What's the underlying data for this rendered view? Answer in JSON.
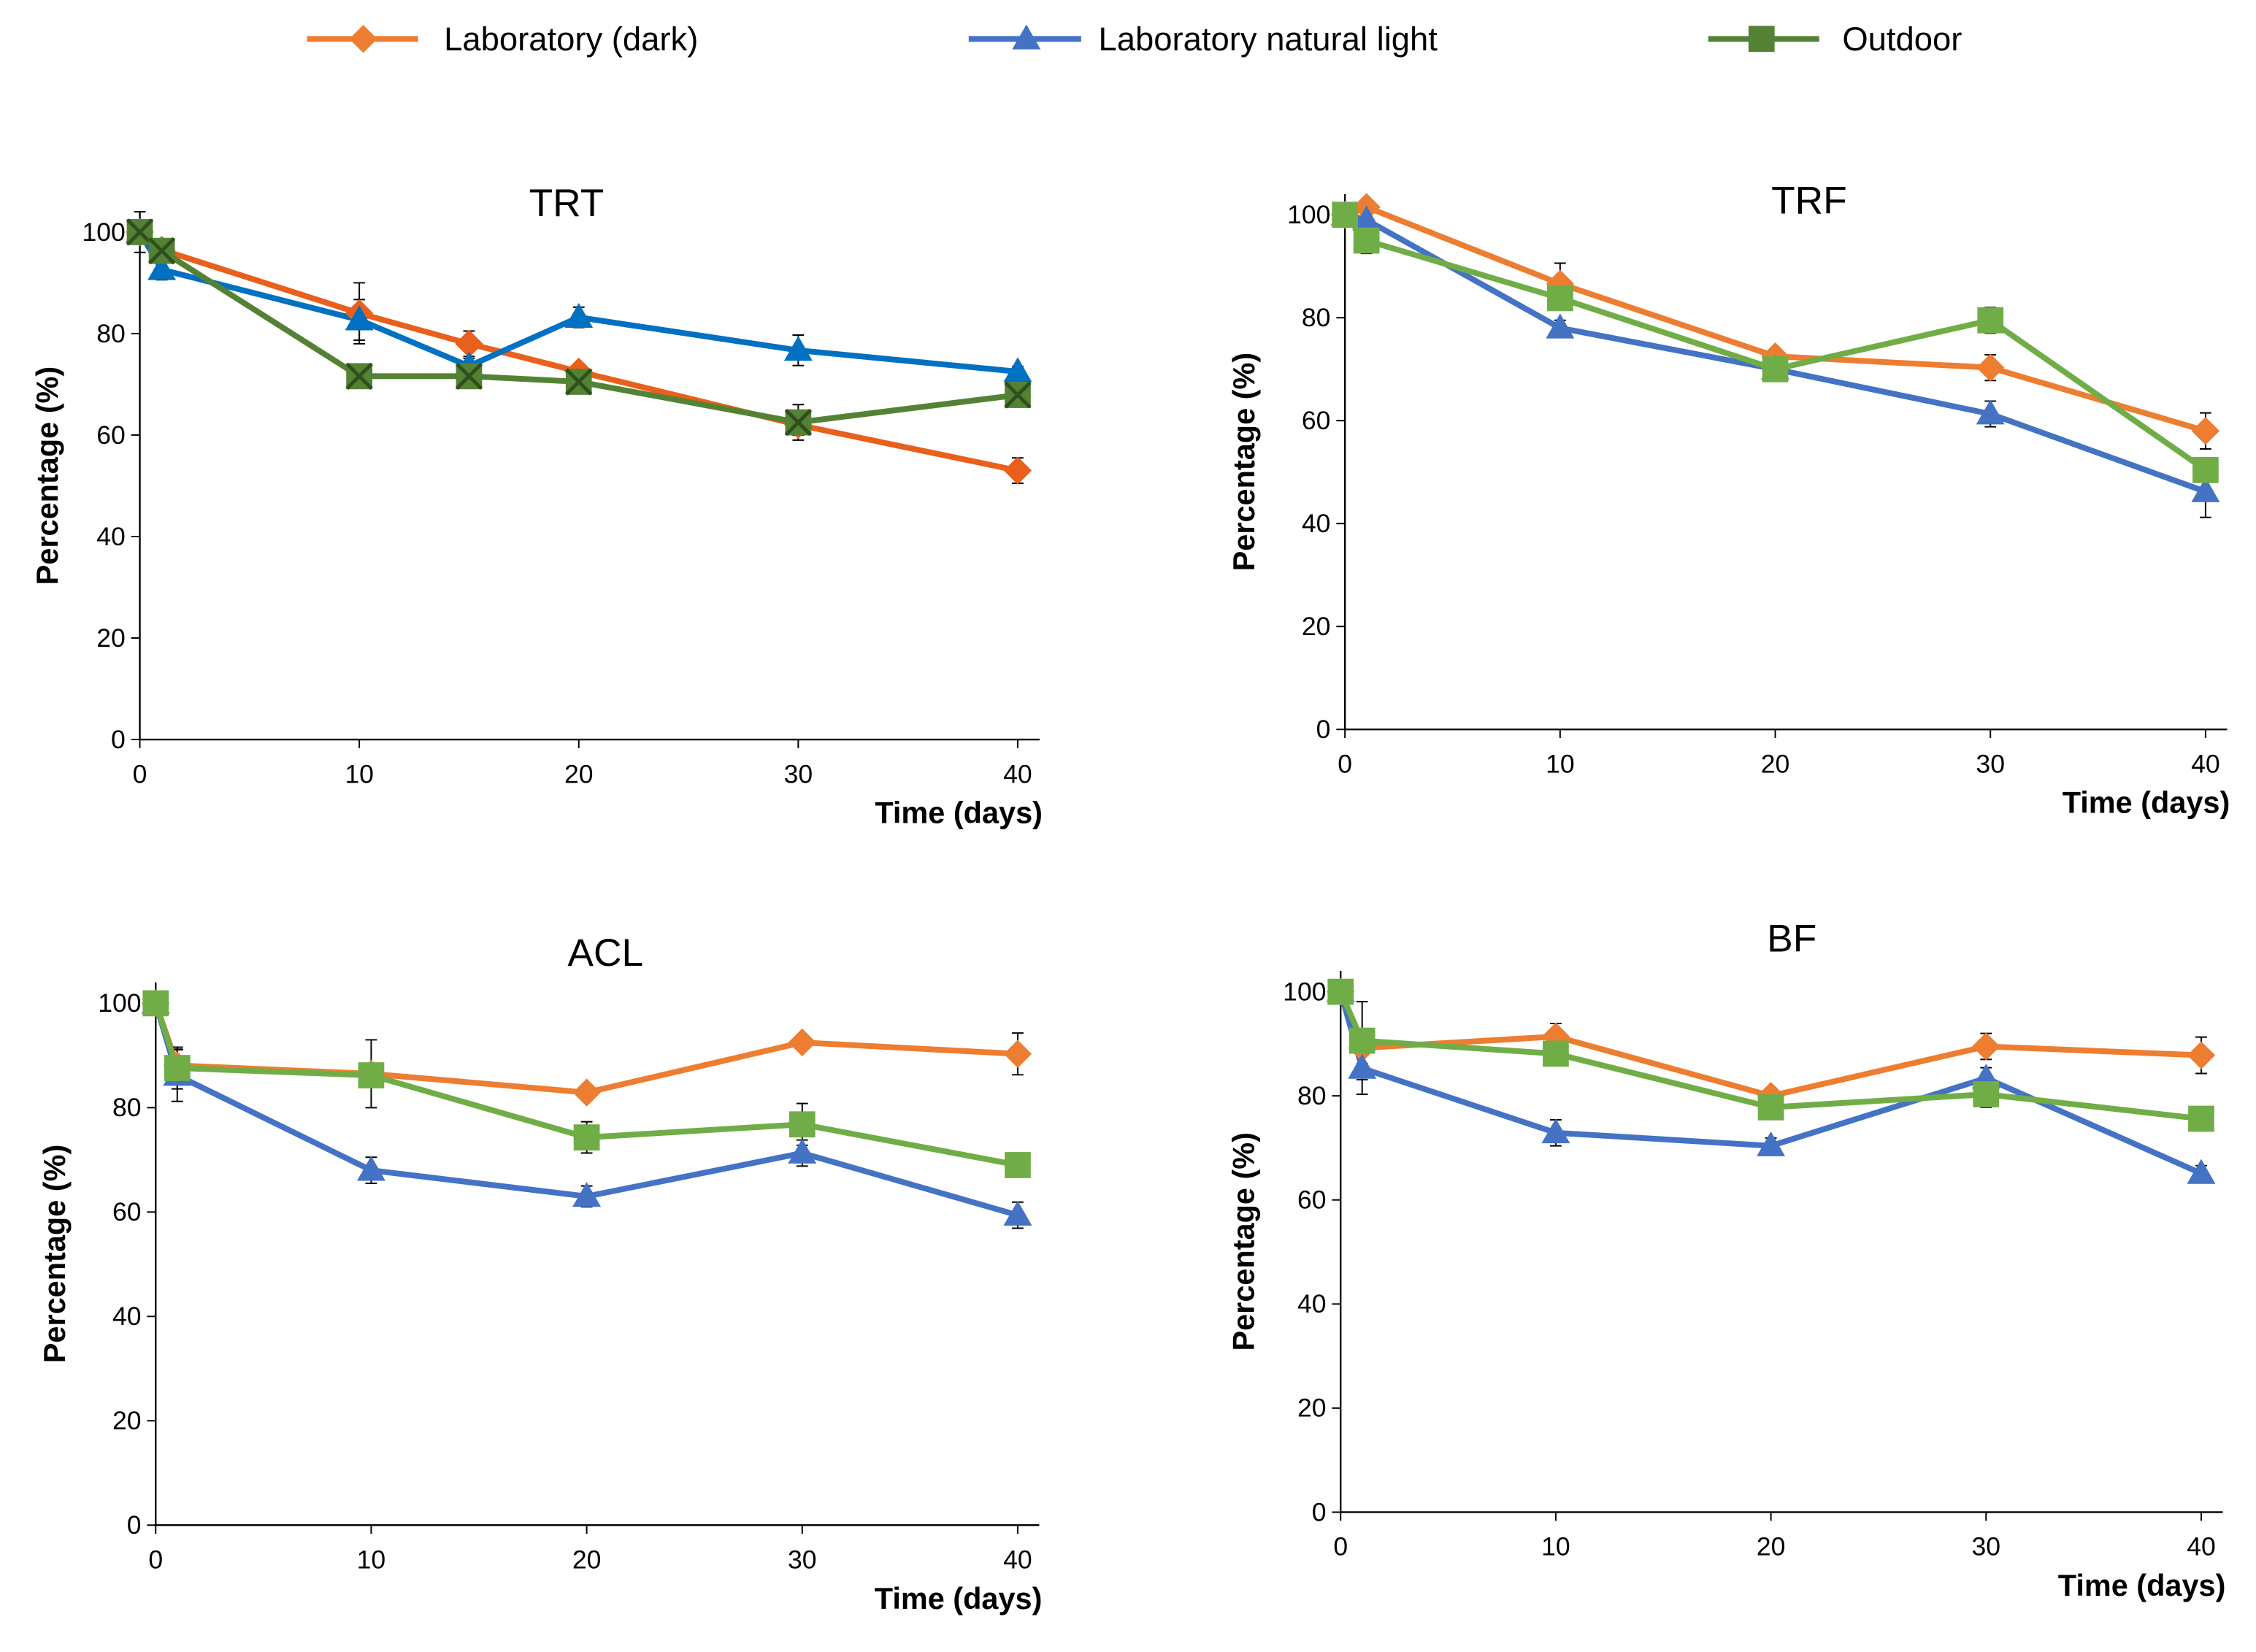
{
  "legend": [
    {
      "name": "Laboratory (dark)",
      "color": "#ed7d31",
      "marker": "diamond"
    },
    {
      "name": "Laboratory natural light",
      "color": "#4472c4",
      "marker": "triangle"
    },
    {
      "name": "Outdoor",
      "color": "#548235",
      "marker": "square"
    }
  ],
  "chart_data": [
    {
      "type": "line",
      "title": "TRT",
      "x_label": "Time (days)",
      "y_label": "Percentage (%)",
      "x": [
        0,
        1,
        10,
        15,
        20,
        30,
        40
      ],
      "series": [
        {
          "color": "#e8601c",
          "marker": "diamond",
          "values": [
            100,
            96.5,
            84,
            78,
            72.5,
            62,
            53
          ],
          "errors": [
            2,
            1.5,
            6,
            2.5,
            1.5,
            2,
            2.5
          ]
        },
        {
          "color": "#0070c0",
          "marker": "triangle",
          "values": [
            100,
            92.6,
            82.7,
            73.6,
            83.2,
            76.7,
            72.5
          ],
          "errors": [
            1.5,
            2,
            4,
            1.5,
            2,
            3,
            1
          ]
        },
        {
          "color": "#548235",
          "marker": "square-x",
          "values": [
            100,
            96.3,
            71.6,
            71.6,
            70.5,
            62.5,
            67.9
          ],
          "errors": [
            4,
            2,
            1.5,
            1.5,
            1.5,
            3.5,
            2
          ]
        }
      ],
      "xlim": [
        0,
        41
      ],
      "ylim": [
        0,
        104
      ],
      "xticks": [
        0,
        10,
        20,
        30,
        40
      ],
      "yticks": [
        0,
        20,
        40,
        60,
        80,
        100
      ]
    },
    {
      "type": "line",
      "title": "TRF",
      "x_label": "Time (days)",
      "y_label": "Percentage (%)",
      "x": [
        0,
        1,
        10,
        20,
        30,
        40
      ],
      "series": [
        {
          "color": "#ed7d31",
          "marker": "diamond",
          "values": [
            100,
            101.5,
            86.6,
            72.5,
            70.3,
            58
          ],
          "errors": [
            1,
            1,
            4,
            1.5,
            2.5,
            3.5
          ]
        },
        {
          "color": "#4472c4",
          "marker": "triangle",
          "values": [
            100,
            99,
            78,
            70,
            61.3,
            46.2
          ],
          "errors": [
            1,
            1.5,
            1.5,
            1,
            2.5,
            5
          ]
        },
        {
          "color": "#70ad47",
          "marker": "square",
          "values": [
            100,
            95,
            83.8,
            70,
            79.5,
            50.4
          ],
          "errors": [
            1,
            2.5,
            2,
            1.5,
            2.5,
            2
          ]
        }
      ],
      "xlim": [
        0,
        41
      ],
      "ylim": [
        0,
        104
      ],
      "xticks": [
        0,
        10,
        20,
        30,
        40
      ],
      "yticks": [
        0,
        20,
        40,
        60,
        80,
        100
      ]
    },
    {
      "type": "line",
      "title": "ACL",
      "x_label": "Time (days)",
      "y_label": "Percentage (%)",
      "x": [
        0,
        1,
        10,
        20,
        30,
        40
      ],
      "series": [
        {
          "color": "#ed7d31",
          "marker": "diamond",
          "values": [
            100,
            88.1,
            86.5,
            82.9,
            92.5,
            90.3
          ],
          "errors": [
            1,
            3,
            6.5,
            1.5,
            1,
            4
          ]
        },
        {
          "color": "#4472c4",
          "marker": "triangle",
          "values": [
            100,
            86.2,
            68,
            63,
            71.3,
            59.4
          ],
          "errors": [
            1,
            5,
            2.5,
            2,
            2.5,
            2.5
          ]
        },
        {
          "color": "#70ad47",
          "marker": "square",
          "values": [
            100,
            87.6,
            86.2,
            74.3,
            76.8,
            69
          ],
          "errors": [
            1,
            4,
            2,
            3,
            4,
            1
          ]
        }
      ],
      "xlim": [
        0,
        41
      ],
      "ylim": [
        0,
        104
      ],
      "xticks": [
        0,
        10,
        20,
        30,
        40
      ],
      "yticks": [
        0,
        20,
        40,
        60,
        80,
        100
      ]
    },
    {
      "type": "line",
      "title": "BF",
      "x_label": "Time (days)",
      "y_label": "Percentage (%)",
      "x": [
        0,
        1,
        10,
        20,
        30,
        40
      ],
      "series": [
        {
          "color": "#ed7d31",
          "marker": "diamond",
          "values": [
            100,
            89.2,
            91.4,
            80,
            89.5,
            87.8
          ],
          "errors": [
            1.5,
            3,
            2.5,
            1.5,
            2.5,
            3.5
          ]
        },
        {
          "color": "#4472c4",
          "marker": "triangle",
          "values": [
            100,
            85.3,
            72.9,
            70.4,
            83.4,
            65.1
          ],
          "errors": [
            1,
            5,
            2.5,
            1.5,
            2,
            1.5
          ]
        },
        {
          "color": "#70ad47",
          "marker": "square",
          "values": [
            100,
            90.6,
            88.1,
            77.8,
            80.3,
            75.6
          ],
          "errors": [
            1,
            7.5,
            2,
            2,
            2.5,
            1
          ]
        }
      ],
      "xlim": [
        0,
        41
      ],
      "ylim": [
        0,
        104
      ],
      "xticks": [
        0,
        10,
        20,
        30,
        40
      ],
      "yticks": [
        0,
        20,
        40,
        60,
        80,
        100
      ]
    }
  ]
}
